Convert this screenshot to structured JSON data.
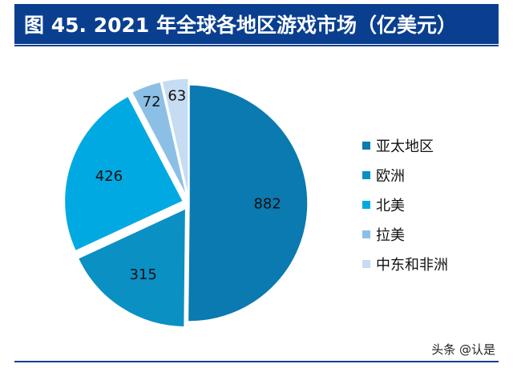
{
  "title": "图 45. 2021 年全球各地区游戏市场（亿美元）",
  "chart_data": {
    "type": "pie",
    "title": "图 45. 2021 年全球各地区游戏市场（亿美元）",
    "categories": [
      "亚太地区",
      "欧洲",
      "北美",
      "拉美",
      "中东和非洲"
    ],
    "values": [
      882,
      315,
      426,
      72,
      63
    ],
    "colors": [
      "#0a7ab0",
      "#0b90c4",
      "#00a9e2",
      "#8cbfe6",
      "#c5dcf2"
    ],
    "exploded": [
      false,
      true,
      true,
      true,
      true
    ],
    "legend": "right"
  },
  "watermark": "头条 @认是"
}
